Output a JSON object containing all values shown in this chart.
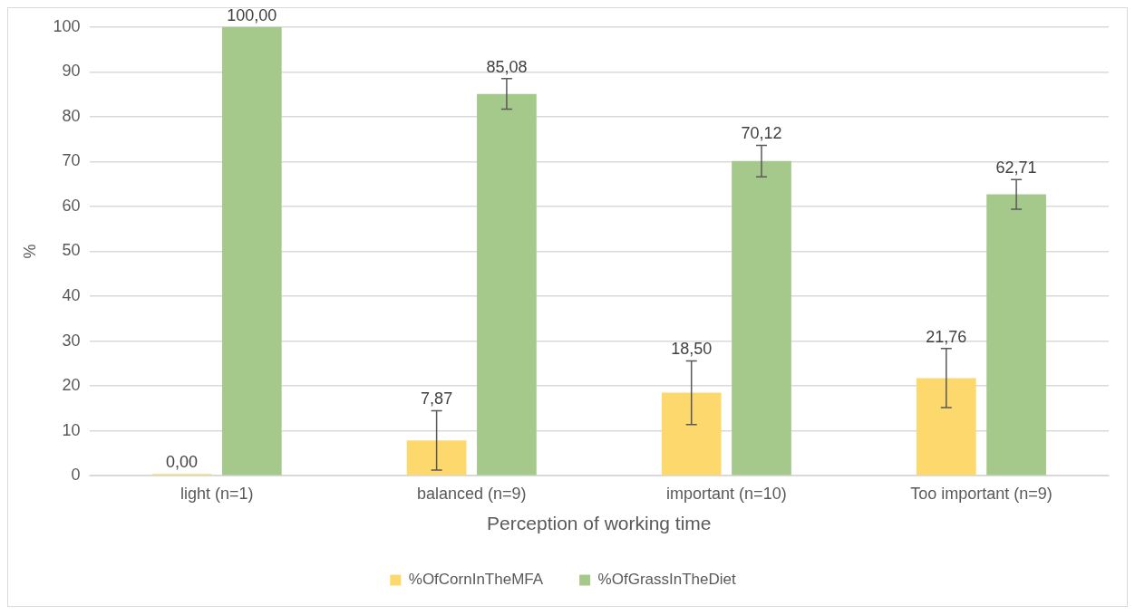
{
  "chart_data": {
    "type": "bar",
    "xlabel": "Perception of working time",
    "ylabel": "%",
    "categories": [
      "light (n=1)",
      "balanced (n=9)",
      "important (n=10)",
      "Too important (n=9)"
    ],
    "series": [
      {
        "name": "%OfCornInTheMFA",
        "color": "#fdd86d",
        "values": [
          0,
          7.87,
          18.5,
          21.76
        ],
        "errors": [
          null,
          6.6,
          7.1,
          6.6
        ],
        "value_labels": [
          "0,00",
          "7,87",
          "18,50",
          "21,76"
        ]
      },
      {
        "name": "%OfGrassInTheDiet",
        "color": "#a5c98a",
        "values": [
          100,
          85.08,
          70.12,
          62.71
        ],
        "errors": [
          null,
          3.4,
          3.5,
          3.3
        ],
        "value_labels": [
          "100,00",
          "85,08",
          "70,12",
          "62,71"
        ]
      }
    ],
    "ylim": [
      0,
      100
    ],
    "yticks": [
      0,
      10,
      20,
      30,
      40,
      50,
      60,
      70,
      80,
      90,
      100
    ],
    "grid": "y",
    "legend": "bottom"
  }
}
